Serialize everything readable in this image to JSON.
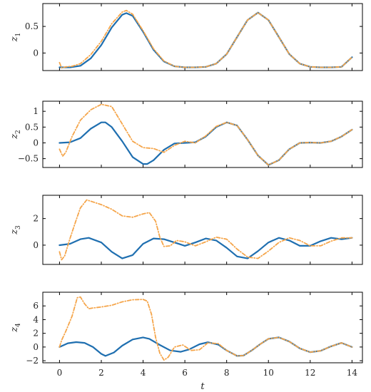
{
  "chart_data": [
    {
      "type": "line",
      "ylabel_main": "z",
      "ylabel_sub": "1",
      "xlim": [
        -0.8,
        14.5
      ],
      "ylim": [
        -0.33,
        0.93
      ],
      "yticks": [
        0,
        0.5
      ],
      "ytick_labels": [
        "0",
        "0.5"
      ],
      "series": [
        {
          "color": "#1f6fb0",
          "style": "solid",
          "x": [
            0,
            0.5,
            1,
            1.5,
            2,
            2.5,
            3,
            3.2,
            3.5,
            4,
            4.5,
            5,
            5.5,
            6,
            6.5,
            7,
            7.5,
            8,
            8.5,
            9,
            9.5,
            10,
            10.5,
            11,
            11.5,
            12,
            12.5,
            13,
            13.5,
            14
          ],
          "y": [
            -0.27,
            -0.27,
            -0.24,
            -0.1,
            0.15,
            0.48,
            0.72,
            0.75,
            0.7,
            0.4,
            0.06,
            -0.16,
            -0.25,
            -0.27,
            -0.27,
            -0.26,
            -0.2,
            -0.02,
            0.3,
            0.62,
            0.76,
            0.62,
            0.3,
            -0.02,
            -0.2,
            -0.26,
            -0.27,
            -0.27,
            -0.26,
            -0.08
          ]
        },
        {
          "color": "#f5a54a",
          "style": "dashdot",
          "x": [
            0,
            0.1,
            0.3,
            0.6,
            1,
            1.5,
            2,
            2.5,
            3,
            3.2,
            3.5,
            4,
            4.5,
            5,
            5.5,
            6,
            6.5,
            7,
            7.5,
            8,
            8.5,
            9,
            9.5,
            10,
            10.5,
            11,
            11.5,
            12,
            12.5,
            13,
            13.5,
            14
          ],
          "y": [
            -0.18,
            -0.28,
            -0.26,
            -0.25,
            -0.2,
            -0.03,
            0.22,
            0.55,
            0.77,
            0.8,
            0.73,
            0.42,
            0.08,
            -0.15,
            -0.25,
            -0.27,
            -0.27,
            -0.26,
            -0.2,
            -0.02,
            0.3,
            0.62,
            0.76,
            0.62,
            0.3,
            -0.02,
            -0.2,
            -0.26,
            -0.27,
            -0.27,
            -0.26,
            -0.08
          ]
        }
      ]
    },
    {
      "type": "line",
      "ylabel_main": "z",
      "ylabel_sub": "2",
      "xlim": [
        -0.8,
        14.5
      ],
      "ylim": [
        -0.78,
        1.32
      ],
      "yticks": [
        -0.5,
        0,
        0.5,
        1
      ],
      "ytick_labels": [
        "−0.5",
        "0",
        "0.5",
        "1"
      ],
      "series": [
        {
          "color": "#1f6fb0",
          "style": "solid",
          "x": [
            0,
            0.5,
            1,
            1.5,
            2,
            2.2,
            2.5,
            3,
            3.5,
            4,
            4.2,
            4.5,
            5,
            5.5,
            6,
            6.5,
            7,
            7.5,
            8,
            8.5,
            9,
            9.5,
            10,
            10.5,
            11,
            11.5,
            12,
            12.5,
            13,
            13.5,
            14
          ],
          "y": [
            0,
            0.02,
            0.15,
            0.45,
            0.65,
            0.65,
            0.5,
            0.05,
            -0.45,
            -0.67,
            -0.67,
            -0.55,
            -0.22,
            -0.02,
            0,
            0.02,
            0.2,
            0.5,
            0.65,
            0.55,
            0.1,
            -0.4,
            -0.7,
            -0.55,
            -0.2,
            0,
            0.01,
            0,
            0.05,
            0.2,
            0.42
          ]
        },
        {
          "color": "#f5a54a",
          "style": "dashdot",
          "x": [
            0,
            0.15,
            0.3,
            0.6,
            1,
            1.5,
            2,
            2.5,
            3,
            3.5,
            4,
            4.5,
            5,
            5.5,
            6,
            6.5,
            7,
            7.5,
            8,
            8.5,
            9,
            9.5,
            10,
            10.5,
            11,
            11.5,
            12,
            12.5,
            13,
            13.5,
            14
          ],
          "y": [
            -0.2,
            -0.42,
            -0.3,
            0.2,
            0.72,
            1.05,
            1.22,
            1.15,
            0.6,
            0.05,
            -0.15,
            -0.18,
            -0.3,
            -0.08,
            0.05,
            0,
            0.22,
            0.52,
            0.65,
            0.55,
            0.1,
            -0.4,
            -0.7,
            -0.55,
            -0.2,
            0,
            0.01,
            0,
            0.05,
            0.2,
            0.42
          ]
        }
      ]
    },
    {
      "type": "line",
      "ylabel_main": "z",
      "ylabel_sub": "3",
      "xlim": [
        -0.8,
        14.5
      ],
      "ylim": [
        -1.45,
        3.75
      ],
      "yticks": [
        0,
        2
      ],
      "ytick_labels": [
        "0",
        "2"
      ],
      "series": [
        {
          "color": "#1f6fb0",
          "style": "solid",
          "x": [
            0,
            0.5,
            1,
            1.4,
            2,
            2.5,
            3,
            3.5,
            4,
            4.5,
            5,
            5.5,
            6,
            6.5,
            7,
            7.5,
            8,
            8.5,
            9,
            9.5,
            10,
            10.5,
            11,
            11.5,
            12,
            12.5,
            13,
            13.5,
            14
          ],
          "y": [
            0,
            0.1,
            0.45,
            0.55,
            0.2,
            -0.5,
            -1.0,
            -0.75,
            0.1,
            0.5,
            0.45,
            0.2,
            -0.05,
            0.2,
            0.5,
            0.35,
            -0.2,
            -0.85,
            -1.0,
            -0.45,
            0.2,
            0.55,
            0.35,
            -0.05,
            -0.05,
            0.3,
            0.55,
            0.45,
            0.55
          ]
        },
        {
          "color": "#f5a54a",
          "style": "dashdot",
          "x": [
            0,
            0.1,
            0.25,
            0.5,
            0.8,
            1,
            1.3,
            1.6,
            2,
            2.5,
            3,
            3.5,
            4,
            4.3,
            4.6,
            4.8,
            5,
            5.3,
            5.6,
            6,
            6.5,
            7,
            7.5,
            8,
            8.5,
            9,
            9.5,
            10,
            10.5,
            11,
            11.5,
            12,
            12.5,
            13,
            13.5,
            14
          ],
          "y": [
            -0.5,
            -1.1,
            -0.8,
            0.5,
            1.9,
            2.8,
            3.4,
            3.25,
            3.05,
            2.7,
            2.2,
            2.1,
            2.35,
            2.45,
            1.8,
            0.6,
            -0.1,
            -0.05,
            0.35,
            0.25,
            -0.05,
            0.25,
            0.6,
            0.45,
            -0.3,
            -0.9,
            -1.0,
            -0.45,
            0.2,
            0.55,
            0.35,
            -0.05,
            -0.05,
            0.3,
            0.55,
            0.55
          ]
        }
      ]
    },
    {
      "type": "line",
      "ylabel_main": "z",
      "ylabel_sub": "4",
      "xlim": [
        -0.8,
        14.5
      ],
      "ylim": [
        -2.3,
        8.0
      ],
      "yticks": [
        -2,
        0,
        2,
        4,
        6
      ],
      "ytick_labels": [
        "−2",
        "0",
        "2",
        "4",
        "6"
      ],
      "series": [
        {
          "color": "#1f6fb0",
          "style": "solid",
          "x": [
            0,
            0.4,
            0.8,
            1.2,
            1.6,
            2,
            2.2,
            2.6,
            3,
            3.5,
            4,
            4.3,
            4.8,
            5.3,
            5.8,
            6.2,
            6.7,
            7.1,
            7.6,
            8,
            8.5,
            8.8,
            9.2,
            9.6,
            10,
            10.5,
            11,
            11.5,
            12,
            12.5,
            13,
            13.5,
            14
          ],
          "y": [
            0,
            0.55,
            0.72,
            0.6,
            0,
            -1.0,
            -1.3,
            -0.8,
            0.2,
            1.1,
            1.4,
            1.2,
            0.3,
            -0.5,
            -0.7,
            -0.35,
            0.4,
            0.7,
            0.35,
            -0.5,
            -1.3,
            -1.25,
            -0.5,
            0.4,
            1.2,
            1.4,
            0.8,
            -0.2,
            -0.75,
            -0.55,
            0.1,
            0.6,
            0
          ]
        },
        {
          "color": "#f5a54a",
          "style": "dashdot",
          "x": [
            0,
            0.1,
            0.3,
            0.6,
            0.85,
            1,
            1.2,
            1.4,
            1.6,
            2,
            2.5,
            3,
            3.5,
            4,
            4.2,
            4.4,
            4.6,
            4.8,
            5,
            5.2,
            5.5,
            5.9,
            6.3,
            6.7,
            7.1,
            7.6,
            8,
            8.5,
            8.8,
            9.2,
            9.6,
            10,
            10.5,
            11,
            11.5,
            12,
            12.5,
            13,
            13.5,
            14
          ],
          "y": [
            0,
            1.0,
            2.3,
            4.5,
            7.2,
            7.3,
            6.3,
            5.6,
            5.7,
            5.85,
            6.1,
            6.6,
            6.9,
            6.95,
            6.7,
            4.8,
            1.4,
            -0.9,
            -1.9,
            -1.5,
            0,
            0.3,
            -0.5,
            -0.4,
            0.6,
            0.5,
            -0.5,
            -1.3,
            -1.25,
            -0.5,
            0.4,
            1.2,
            1.4,
            0.8,
            -0.2,
            -0.75,
            -0.55,
            0.1,
            0.6,
            0
          ]
        }
      ]
    }
  ],
  "shared_x": {
    "xticks": [
      0,
      2,
      4,
      6,
      8,
      10,
      12,
      14
    ],
    "xtick_labels": [
      "0",
      "2",
      "4",
      "6",
      "8",
      "10",
      "12",
      "14"
    ],
    "xlabel": "t"
  }
}
